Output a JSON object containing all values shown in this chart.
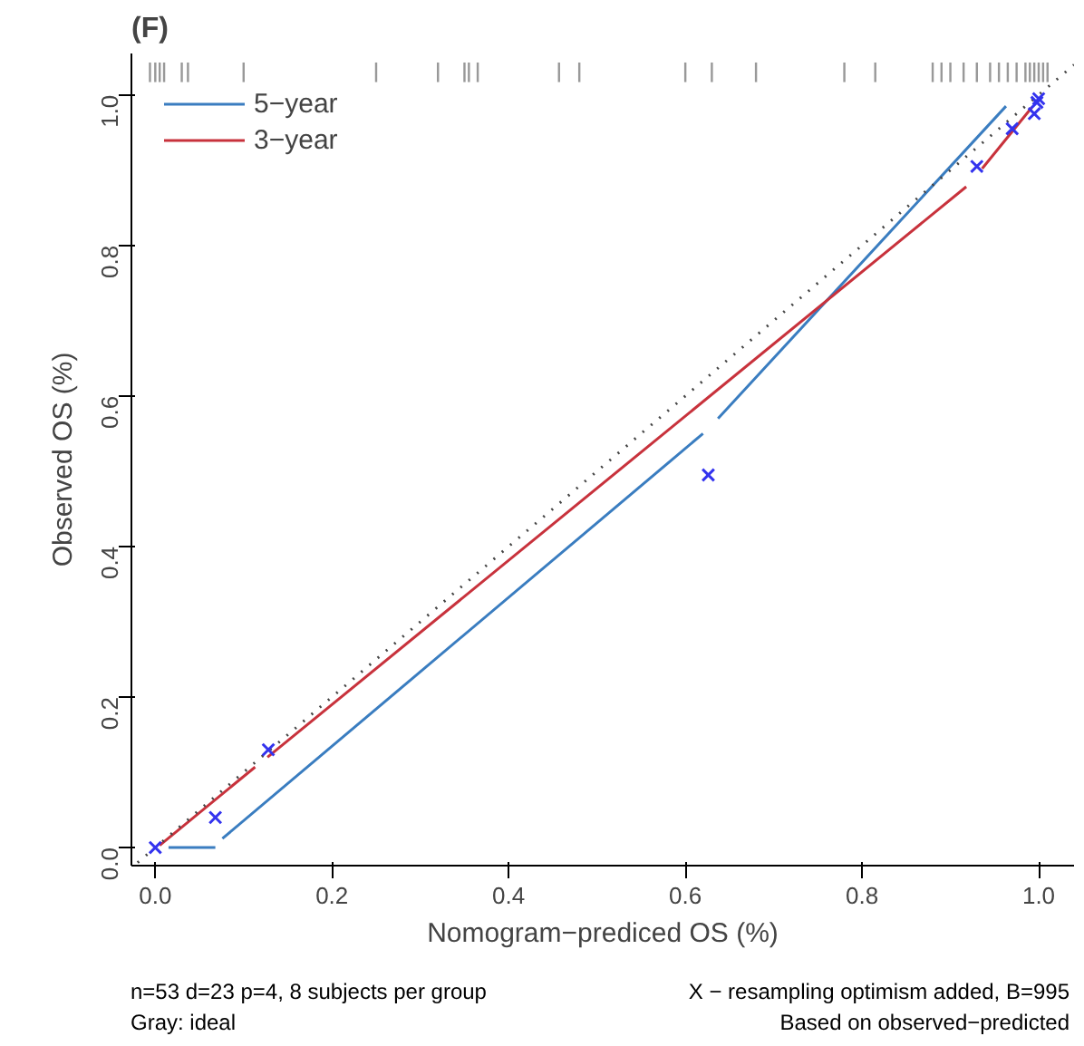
{
  "chart_data": {
    "type": "line",
    "title": "(F)",
    "xlabel": "Nomogram−prediced OS (%)",
    "ylabel": "Observed OS (%)",
    "xlim": [
      -0.027,
      1.04
    ],
    "ylim": [
      -0.024,
      1.055
    ],
    "xticks": [
      {
        "value": 0,
        "label": "0.0"
      },
      0.2,
      0.4,
      0.6,
      0.8,
      {
        "value": 1,
        "label": "1.0"
      }
    ],
    "yticks": [
      {
        "value": 0,
        "label": "0.0"
      },
      0.2,
      0.4,
      0.6,
      0.8,
      {
        "value": 1,
        "label": "1.0"
      }
    ],
    "grid": false,
    "legend": "top left",
    "series": [
      {
        "name": "5−year",
        "color": "#3a7dc0",
        "line_style": "solid",
        "x": [
          0.015,
          0.068,
          null,
          0.076,
          0.62,
          null,
          0.637,
          0.963
        ],
        "values": [
          0,
          0,
          null,
          0.012,
          0.55,
          null,
          0.57,
          0.985
        ]
      },
      {
        "name": "3−year",
        "color": "#c8323c",
        "line_style": "solid",
        "x": [
          0.005,
          0.113,
          null,
          0.127,
          0.918,
          null,
          0.936,
          0.992
        ],
        "values": [
          0.003,
          0.107,
          null,
          0.12,
          0.878,
          null,
          0.902,
          0.983
        ]
      },
      {
        "type": "line",
        "color": "#444444",
        "line_style": "dotted",
        "x": [
          -0.02,
          1.04
        ],
        "values": [
          -0.02,
          1.04
        ]
      },
      {
        "type": "scatter",
        "marker": "cross",
        "color": "#3333ee",
        "x": [
          0,
          0.068,
          0.128,
          0.626,
          0.93,
          0.97,
          0.995,
          0.998,
          1.0
        ],
        "values": [
          0,
          0.04,
          0.13,
          0.495,
          0.905,
          0.955,
          0.975,
          0.99,
          0.995
        ]
      },
      {
        "type": "bar",
        "color": "#999999",
        "base": [
          1.017,
          1.017,
          1.017,
          1.017,
          1.017,
          1.017,
          1.017,
          1.017,
          1.017,
          1.017,
          1.017,
          1.017,
          1.017,
          1.017,
          1.017,
          1.017,
          1.017,
          1.017,
          1.017,
          1.017,
          1.017,
          1.017,
          1.017,
          1.017,
          1.017,
          1.017,
          1.017,
          1.017,
          1.017,
          1.017,
          1.017,
          1.017,
          1.017,
          1.017
        ],
        "x": [
          -0.006,
          0.0,
          0.005,
          0.01,
          0.03,
          0.037,
          0.1,
          0.25,
          0.32,
          0.35,
          0.355,
          0.365,
          0.457,
          0.48,
          0.6,
          0.63,
          0.68,
          0.78,
          0.815,
          0.88,
          0.89,
          0.9,
          0.915,
          0.93,
          0.945,
          0.955,
          0.965,
          0.975,
          0.985,
          0.99,
          0.995,
          1.0,
          1.005,
          1.01
        ],
        "values": [
          0.026,
          0.026,
          0.026,
          0.026,
          0.026,
          0.026,
          0.026,
          0.026,
          0.026,
          0.026,
          0.026,
          0.026,
          0.026,
          0.026,
          0.026,
          0.026,
          0.026,
          0.026,
          0.026,
          0.026,
          0.026,
          0.026,
          0.026,
          0.026,
          0.026,
          0.026,
          0.026,
          0.026,
          0.026,
          0.026,
          0.026,
          0.026,
          0.026,
          0.026
        ]
      }
    ],
    "annotations": [
      "n=53 d=23 p=4, 8 subjects per group",
      "Gray: ideal",
      "X − resampling optimism added, B=995",
      "Based on observed−predicted"
    ]
  }
}
